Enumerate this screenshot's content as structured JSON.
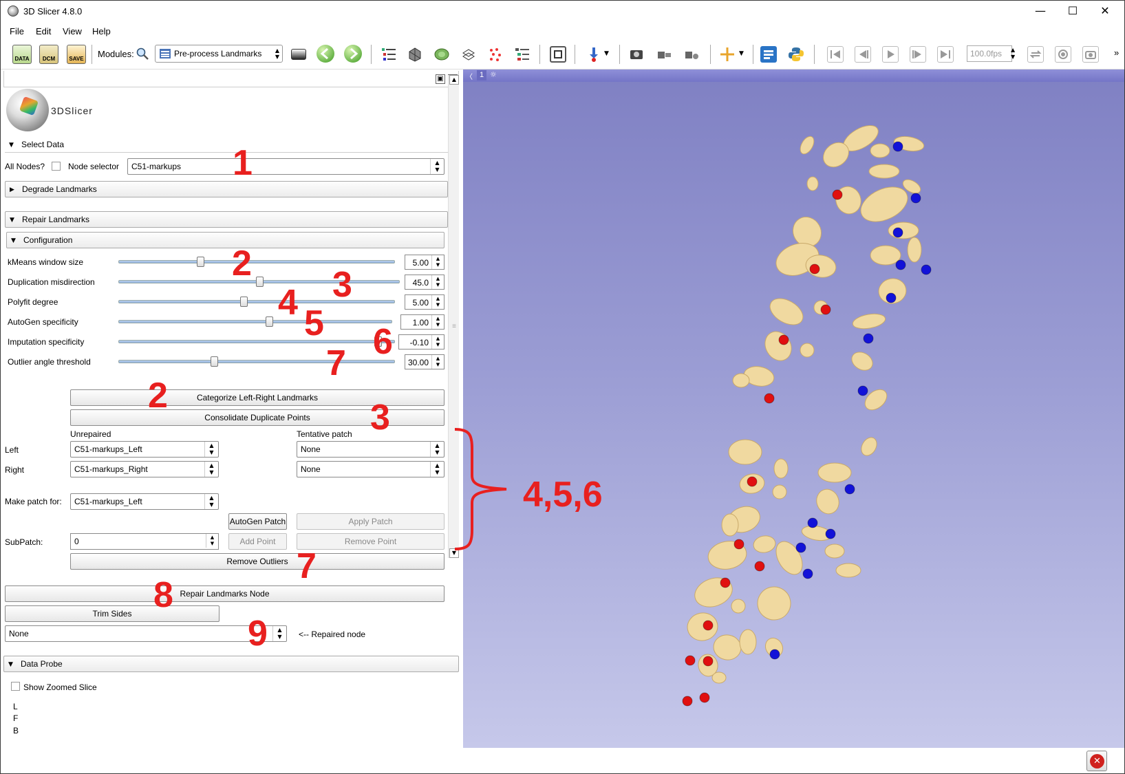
{
  "window": {
    "title": "3D Slicer 4.8.0"
  },
  "menu": [
    "File",
    "Edit",
    "View",
    "Help"
  ],
  "toolbar": {
    "data_label": "DATA",
    "dcm_label": "DCM",
    "save_label": "SAVE",
    "modules_label": "Modules:",
    "module_selected": "Pre-process Landmarks",
    "fps": "100.0fps"
  },
  "panel": {
    "logo_text": "3DSlicer",
    "select_data": {
      "title": "Select Data",
      "all_nodes_label": "All Nodes?",
      "node_selector_label": "Node selector",
      "node_selector_value": "C51-markups"
    },
    "degrade": {
      "title": "Degrade Landmarks"
    },
    "repair": {
      "title": "Repair Landmarks",
      "configuration_title": "Configuration",
      "params": [
        {
          "label": "kMeans window size",
          "value": "5.00",
          "level": 0.29
        },
        {
          "label": "Duplication misdirection",
          "value": "45.0",
          "level": 0.5
        },
        {
          "label": "Polyfit degree",
          "value": "5.00",
          "level": 0.45
        },
        {
          "label": "AutoGen specificity",
          "value": "1.00",
          "level": 0.55
        },
        {
          "label": "Imputation specificity",
          "value": "-0.10",
          "level": 0.95
        },
        {
          "label": "Outlier angle threshold",
          "value": "30.00",
          "level": 0.34
        }
      ],
      "categorize_button": "Categorize Left-Right Landmarks",
      "consolidate_button": "Consolidate Duplicate Points",
      "unrepaired_label": "Unrepaired",
      "tentative_label": "Tentative patch",
      "left_label": "Left",
      "right_label": "Right",
      "left_unrepaired": "C51-markups_Left",
      "right_unrepaired": "C51-markups_Right",
      "left_tentative": "None",
      "right_tentative": "None",
      "make_patch_label": "Make patch for:",
      "make_patch_value": "C51-markups_Left",
      "autogen_patch_button": "AutoGen Patch",
      "apply_patch_button": "Apply Patch",
      "subpatch_label": "SubPatch:",
      "subpatch_value": "0",
      "add_point_button": "Add Point",
      "remove_point_button": "Remove Point",
      "remove_outliers_button": "Remove Outliers",
      "repair_node_button": "Repair Landmarks Node",
      "trim_sides_button": "Trim Sides",
      "repaired_node_value": "None",
      "repaired_node_label": "<-- Repaired node"
    },
    "data_probe": {
      "title": "Data Probe",
      "show_zoomed_label": "Show Zoomed Slice",
      "coords": [
        "L",
        "F",
        "B"
      ]
    }
  },
  "view": {
    "number": "1"
  },
  "annotations": {
    "a1": "1",
    "a2": "2",
    "a3": "3",
    "a4": "4",
    "a5": "5",
    "a6": "6",
    "a7": "7",
    "a8": "8",
    "a9": "9",
    "a456": "4,5,6"
  },
  "colors": {
    "red_landmark": "#e01010",
    "blue_landmark": "#1212d8",
    "bone": "#f0d9a0",
    "annotation": "#e8201f"
  }
}
